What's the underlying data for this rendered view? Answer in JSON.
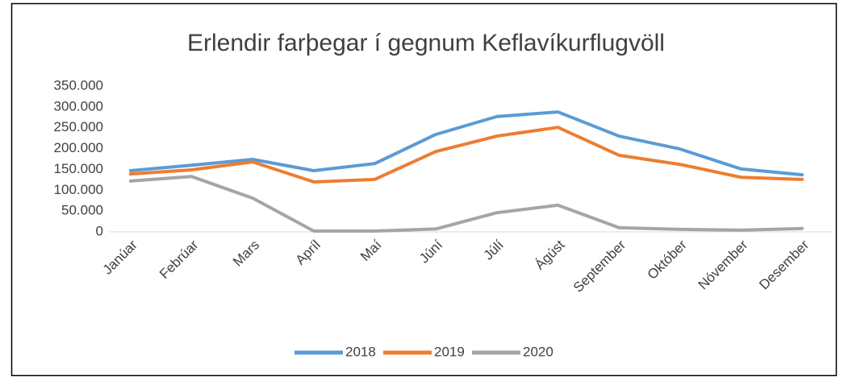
{
  "chart_data": {
    "type": "line",
    "title": "Erlendir farþegar í gegnum Keflavíkurflugvöll",
    "categories": [
      "Janúar",
      "Febrúar",
      "Mars",
      "Apríl",
      "Maí",
      "Júní",
      "Júlí",
      "Ágúst",
      "September",
      "Október",
      "Nóvember",
      "Desember"
    ],
    "series": [
      {
        "name": "2018",
        "color": "#5b9bd5",
        "values": [
          147000,
          160000,
          174000,
          147000,
          164000,
          234000,
          277000,
          288000,
          230000,
          199000,
          151000,
          137000
        ]
      },
      {
        "name": "2019",
        "color": "#ed7d31",
        "values": [
          139000,
          149000,
          168000,
          120000,
          126000,
          193000,
          230000,
          251000,
          184000,
          162000,
          131000,
          126000
        ]
      },
      {
        "name": "2020",
        "color": "#a5a5a5",
        "values": [
          122000,
          133000,
          81000,
          2000,
          2000,
          7000,
          46000,
          64000,
          10000,
          6000,
          4000,
          8000
        ]
      }
    ],
    "ylim": [
      0,
      350000
    ],
    "yticks": [
      0,
      {
        "value": 50000,
        "label": "50.000"
      },
      {
        "value": 100000,
        "label": "100.000"
      },
      {
        "value": 150000,
        "label": "150.000"
      },
      {
        "value": 200000,
        "label": "200.000"
      },
      {
        "value": 250000,
        "label": "250.000"
      },
      {
        "value": 300000,
        "label": "300.000"
      },
      {
        "value": 350000,
        "label": "350.000"
      }
    ],
    "grid": false,
    "legend": "bottom"
  }
}
